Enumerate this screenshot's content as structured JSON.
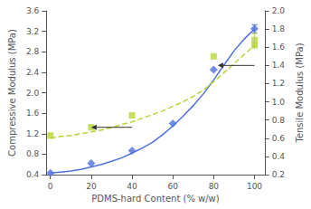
{
  "chart_data": {
    "type": "line",
    "xlabel": "PDMS-hard Content (% w/w)",
    "ylabel": "Compressive Modulus (MPa)",
    "y2label": "Tensile Modulus (MPa)",
    "xlim": [
      -2,
      105
    ],
    "xticks": [
      0,
      20,
      40,
      60,
      80,
      100
    ],
    "ylim": [
      0.4,
      3.6
    ],
    "yticks": [
      0.4,
      0.8,
      1.2,
      1.6,
      {
        "value": 2.0,
        "label": "2.0"
      },
      2.4,
      2.8,
      3.2,
      3.6
    ],
    "y2lim": [
      0.2,
      2.0
    ],
    "y2ticks": [
      0.2,
      0.4,
      0.6,
      0.8,
      {
        "value": 1.0,
        "label": "1.0"
      },
      1.2,
      1.4,
      1.6,
      1.8,
      {
        "value": 2.0,
        "label": "2.0"
      }
    ],
    "grid": false,
    "series": [
      {
        "type": "line",
        "marker": "none",
        "line_style": "solid",
        "axis": "y",
        "x": [
          0,
          2,
          5,
          8,
          10,
          15,
          20,
          25,
          30,
          35,
          40,
          45,
          50,
          55,
          60,
          65,
          70,
          75,
          80,
          85,
          90,
          95,
          100
        ],
        "values": [
          0.43,
          0.44,
          0.45,
          0.46,
          0.47,
          0.5,
          0.55,
          0.6,
          0.66,
          0.73,
          0.82,
          0.92,
          1.03,
          1.18,
          1.35,
          1.54,
          1.75,
          1.98,
          2.25,
          2.54,
          2.82,
          3.05,
          3.25
        ]
      },
      {
        "type": "scatter",
        "marker": "diamond",
        "axis": "y",
        "x": [
          0,
          20,
          40,
          60,
          80,
          100
        ],
        "values": [
          0.43,
          0.62,
          0.87,
          1.4,
          2.45,
          3.25
        ],
        "errors": [
          null,
          null,
          null,
          null,
          null,
          0.08
        ]
      },
      {
        "type": "line",
        "marker": "none",
        "line_style": "dashed",
        "axis": "y2",
        "x": [
          0,
          5,
          10,
          15,
          20,
          25,
          30,
          35,
          40,
          45,
          50,
          55,
          60,
          65,
          70,
          75,
          80,
          85,
          90,
          95,
          100
        ],
        "values": [
          0.6,
          0.62,
          0.63,
          0.65,
          0.67,
          0.69,
          0.72,
          0.75,
          0.78,
          0.82,
          0.86,
          0.9,
          0.95,
          1.0,
          1.06,
          1.13,
          1.22,
          1.32,
          1.42,
          1.52,
          1.62
        ]
      },
      {
        "type": "scatter",
        "marker": "square",
        "axis": "y2",
        "x": [
          0,
          20,
          40,
          80,
          100
        ],
        "values": [
          0.63,
          0.72,
          0.85,
          1.5,
          1.62
        ]
      },
      {
        "type": "scatter",
        "marker": "square",
        "axis": "y2",
        "x": [
          100
        ],
        "values": [
          1.68
        ],
        "errors": [
          0.07
        ]
      }
    ],
    "arrows": [
      {
        "from": [
          40,
          0.72
        ],
        "to": [
          20,
          0.72
        ],
        "axis": "y2"
      },
      {
        "from": [
          100,
          1.4
        ],
        "to": [
          82,
          1.4
        ],
        "axis": "y2"
      }
    ]
  }
}
